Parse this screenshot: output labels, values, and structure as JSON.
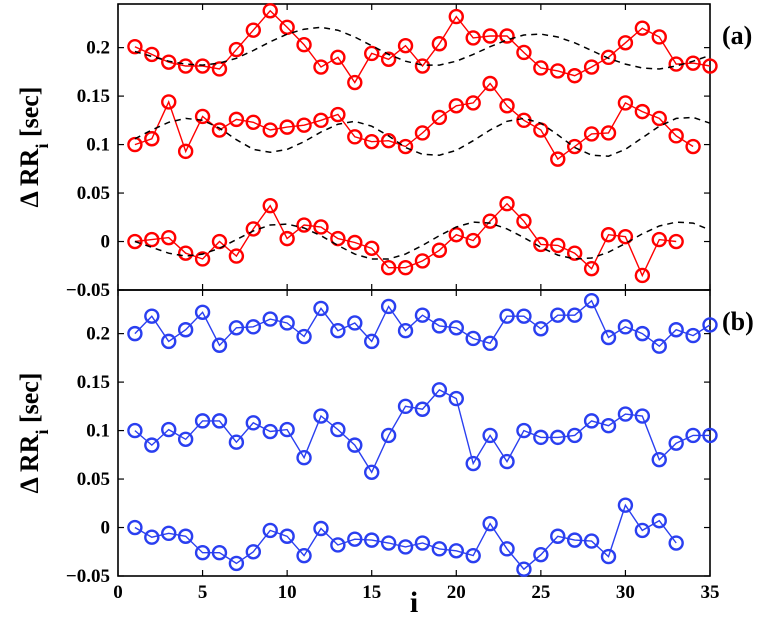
{
  "chart_data": [
    {
      "type": "line",
      "panel_label": "(a)",
      "ylabel": {
        "main": "Δ RR",
        "sub": "i",
        "unit": "[sec]"
      },
      "xlabel": "",
      "xlim": [
        0,
        35
      ],
      "ylim": [
        -0.05,
        0.245
      ],
      "xticks": [
        0,
        5,
        10,
        15,
        20,
        25,
        30,
        35
      ],
      "yticks": [
        -0.05,
        0,
        0.05,
        0.1,
        0.15,
        0.2
      ],
      "ytick_labels": [
        "−0.05",
        "0",
        "0.05",
        "0.1",
        "0.15",
        "0.2"
      ],
      "color": "#ff0000",
      "grid": false,
      "series": [
        {
          "kind": "markers+line",
          "x": [
            1,
            2,
            3,
            4,
            5,
            6,
            7,
            8,
            9,
            10,
            11,
            12,
            13,
            14,
            15,
            16,
            17,
            18,
            19,
            20,
            21,
            22,
            23,
            24,
            25,
            26,
            27,
            28,
            29,
            30,
            31,
            32,
            33,
            34,
            35
          ],
          "y": [
            0.201,
            0.193,
            0.185,
            0.181,
            0.181,
            0.178,
            0.198,
            0.218,
            0.238,
            0.221,
            0.203,
            0.18,
            0.19,
            0.164,
            0.194,
            0.188,
            0.202,
            0.181,
            0.204,
            0.232,
            0.21,
            0.212,
            0.212,
            0.195,
            0.179,
            0.176,
            0.171,
            0.18,
            0.19,
            0.205,
            0.22,
            0.211,
            0.183,
            0.184,
            0.181
          ]
        },
        {
          "kind": "markers+line",
          "x": [
            1,
            2,
            3,
            4,
            5,
            6,
            7,
            8,
            9,
            10,
            11,
            12,
            13,
            14,
            15,
            16,
            17,
            18,
            19,
            20,
            21,
            22,
            23,
            24,
            25,
            26,
            27,
            28,
            29,
            30,
            31,
            32,
            33,
            34
          ],
          "y": [
            0.1,
            0.106,
            0.144,
            0.093,
            0.129,
            0.115,
            0.126,
            0.123,
            0.115,
            0.118,
            0.12,
            0.125,
            0.131,
            0.108,
            0.103,
            0.104,
            0.098,
            0.112,
            0.128,
            0.14,
            0.143,
            0.163,
            0.14,
            0.125,
            0.115,
            0.085,
            0.098,
            0.111,
            0.112,
            0.143,
            0.134,
            0.127,
            0.109,
            0.098
          ]
        },
        {
          "kind": "markers+line",
          "x": [
            1,
            2,
            3,
            4,
            5,
            6,
            7,
            8,
            9,
            10,
            11,
            12,
            13,
            14,
            15,
            16,
            17,
            18,
            19,
            20,
            21,
            22,
            23,
            24,
            25,
            26,
            27,
            28,
            29,
            30,
            31,
            32,
            33
          ],
          "y": [
            0.0,
            0.002,
            0.004,
            -0.012,
            -0.018,
            0.0,
            -0.015,
            0.013,
            0.037,
            0.003,
            0.017,
            0.015,
            0.003,
            -0.001,
            -0.007,
            -0.027,
            -0.027,
            -0.02,
            -0.009,
            0.007,
            0.001,
            0.021,
            0.039,
            0.021,
            -0.003,
            -0.004,
            -0.012,
            -0.028,
            0.007,
            0.005,
            -0.035,
            0.002,
            0.0
          ]
        },
        {
          "kind": "dashed-model",
          "x": [
            1,
            2,
            3,
            4,
            5,
            6,
            7,
            8,
            9,
            10,
            11,
            12,
            13,
            14,
            15,
            16,
            17,
            18,
            19,
            20,
            21,
            22,
            23,
            24,
            25,
            26,
            27,
            28,
            29,
            30,
            31,
            32,
            33,
            34,
            35
          ],
          "y": [
            0.196,
            0.191,
            0.186,
            0.183,
            0.182,
            0.184,
            0.189,
            0.197,
            0.206,
            0.214,
            0.219,
            0.221,
            0.218,
            0.211,
            0.202,
            0.193,
            0.186,
            0.182,
            0.182,
            0.186,
            0.193,
            0.201,
            0.208,
            0.213,
            0.214,
            0.211,
            0.205,
            0.197,
            0.189,
            0.183,
            0.179,
            0.178,
            0.181,
            0.186,
            0.192
          ]
        },
        {
          "kind": "dashed-model",
          "x": [
            1,
            2,
            3,
            4,
            5,
            6,
            7,
            8,
            9,
            10,
            11,
            12,
            13,
            14,
            15,
            16,
            17,
            18,
            19,
            20,
            21,
            22,
            23,
            24,
            25,
            26,
            27,
            28,
            29,
            30,
            31,
            32,
            33,
            34,
            35
          ],
          "y": [
            0.106,
            0.115,
            0.123,
            0.127,
            0.125,
            0.117,
            0.105,
            0.095,
            0.092,
            0.095,
            0.103,
            0.113,
            0.121,
            0.124,
            0.119,
            0.109,
            0.097,
            0.09,
            0.089,
            0.094,
            0.104,
            0.115,
            0.124,
            0.127,
            0.122,
            0.11,
            0.097,
            0.089,
            0.088,
            0.095,
            0.107,
            0.119,
            0.127,
            0.128,
            0.122
          ]
        },
        {
          "kind": "dashed-model",
          "x": [
            1,
            2,
            3,
            4,
            5,
            6,
            7,
            8,
            9,
            10,
            11,
            12,
            13,
            14,
            15,
            16,
            17,
            18,
            19,
            20,
            21,
            22,
            23,
            24,
            25,
            26,
            27,
            28,
            29,
            30,
            31,
            32,
            33,
            34,
            35
          ],
          "y": [
            0.0,
            -0.006,
            -0.012,
            -0.015,
            -0.013,
            -0.007,
            0.002,
            0.011,
            0.017,
            0.018,
            0.014,
            0.006,
            -0.004,
            -0.013,
            -0.018,
            -0.018,
            -0.013,
            -0.004,
            0.006,
            0.015,
            0.02,
            0.019,
            0.013,
            0.004,
            -0.006,
            -0.014,
            -0.018,
            -0.017,
            -0.011,
            -0.002,
            0.008,
            0.016,
            0.02,
            0.019,
            0.012
          ]
        }
      ]
    },
    {
      "type": "line",
      "panel_label": "(b)",
      "ylabel": {
        "main": "Δ RR",
        "sub": "i",
        "unit": "[sec]"
      },
      "xlabel": "i",
      "xlim": [
        0,
        35
      ],
      "ylim": [
        -0.05,
        0.245
      ],
      "xticks": [
        0,
        5,
        10,
        15,
        20,
        25,
        30,
        35
      ],
      "xtick_labels": [
        "0",
        "5",
        "10",
        "15",
        "20",
        "25",
        "30",
        "35"
      ],
      "yticks": [
        -0.05,
        0,
        0.05,
        0.1,
        0.15,
        0.2
      ],
      "ytick_labels": [
        "−0.05",
        "0",
        "0.05",
        "0.1",
        "0.15",
        "0.2"
      ],
      "color": "#2a3ff0",
      "grid": false,
      "series": [
        {
          "kind": "markers+line",
          "x": [
            1,
            2,
            3,
            4,
            5,
            6,
            7,
            8,
            9,
            10,
            11,
            12,
            13,
            14,
            15,
            16,
            17,
            18,
            19,
            20,
            21,
            22,
            23,
            24,
            25,
            26,
            27,
            28,
            29,
            30,
            31,
            32,
            33,
            34,
            35
          ],
          "y": [
            0.2,
            0.218,
            0.192,
            0.204,
            0.222,
            0.188,
            0.206,
            0.207,
            0.215,
            0.211,
            0.197,
            0.226,
            0.203,
            0.211,
            0.192,
            0.228,
            0.203,
            0.219,
            0.208,
            0.206,
            0.195,
            0.19,
            0.218,
            0.218,
            0.205,
            0.219,
            0.219,
            0.234,
            0.196,
            0.207,
            0.2,
            0.187,
            0.204,
            0.198,
            0.209
          ]
        },
        {
          "kind": "markers+line",
          "x": [
            1,
            2,
            3,
            4,
            5,
            6,
            7,
            8,
            9,
            10,
            11,
            12,
            13,
            14,
            15,
            16,
            17,
            18,
            19,
            20,
            21,
            22,
            23,
            24,
            25,
            26,
            27,
            28,
            29,
            30,
            31,
            32,
            33,
            34,
            35
          ],
          "y": [
            0.1,
            0.085,
            0.101,
            0.091,
            0.11,
            0.11,
            0.088,
            0.108,
            0.099,
            0.101,
            0.072,
            0.115,
            0.101,
            0.085,
            0.057,
            0.095,
            0.125,
            0.122,
            0.142,
            0.133,
            0.066,
            0.095,
            0.068,
            0.1,
            0.093,
            0.093,
            0.095,
            0.11,
            0.105,
            0.117,
            0.115,
            0.07,
            0.087,
            0.095,
            0.095
          ]
        },
        {
          "kind": "markers+line",
          "x": [
            1,
            2,
            3,
            4,
            5,
            6,
            7,
            8,
            9,
            10,
            11,
            12,
            13,
            14,
            15,
            16,
            17,
            18,
            19,
            20,
            21,
            22,
            23,
            24,
            25,
            26,
            27,
            28,
            29,
            30,
            31,
            32,
            33
          ],
          "y": [
            0.0,
            -0.01,
            -0.006,
            -0.009,
            -0.026,
            -0.026,
            -0.037,
            -0.025,
            -0.003,
            -0.009,
            -0.029,
            -0.001,
            -0.018,
            -0.012,
            -0.013,
            -0.016,
            -0.02,
            -0.016,
            -0.022,
            -0.024,
            -0.029,
            0.004,
            -0.022,
            -0.043,
            -0.028,
            -0.009,
            -0.013,
            -0.014,
            -0.03,
            0.023,
            -0.003,
            0.007,
            -0.016
          ]
        }
      ]
    }
  ]
}
